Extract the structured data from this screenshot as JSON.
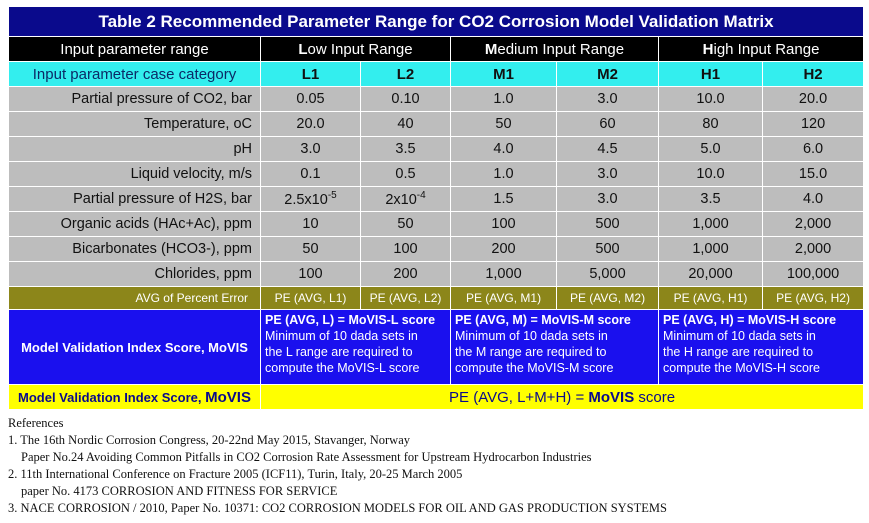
{
  "title": "Table 2   Recommended Parameter Range for CO2 Corrosion Model Validation Matrix",
  "header": {
    "label": "Input parameter range",
    "groups": [
      {
        "initial": "L",
        "rest": "ow Input Range"
      },
      {
        "initial": "M",
        "rest": "edium Input Range"
      },
      {
        "initial": "H",
        "rest": "igh Input Range"
      }
    ]
  },
  "category_row": {
    "label": "Input parameter case category",
    "cases": [
      "L1",
      "L2",
      "M1",
      "M2",
      "H1",
      "H2"
    ]
  },
  "rows": [
    {
      "label": "Partial pressure of CO2, bar",
      "values": [
        "0.05",
        "0.10",
        "1.0",
        "3.0",
        "10.0",
        "20.0"
      ]
    },
    {
      "label": "Temperature, oC",
      "values": [
        "20.0",
        "40",
        "50",
        "60",
        "80",
        "120"
      ]
    },
    {
      "label": "pH",
      "values": [
        "3.0",
        "3.5",
        "4.0",
        "4.5",
        "5.0",
        "6.0"
      ]
    },
    {
      "label": "Liquid velocity, m/s",
      "values": [
        "0.1",
        "0.5",
        "1.0",
        "3.0",
        "10.0",
        "15.0"
      ]
    },
    {
      "label": "Organic acids (HAc+Ac), ppm",
      "values": [
        "10",
        "50",
        "100",
        "500",
        "1,000",
        "2,000"
      ]
    },
    {
      "label": "Bicarbonates (HCO3-), ppm",
      "values": [
        "50",
        "100",
        "200",
        "500",
        "1,000",
        "2,000"
      ]
    },
    {
      "label": "Chlorides, ppm",
      "values": [
        "100",
        "200",
        "1,000",
        "5,000",
        "20,000",
        "100,000"
      ]
    }
  ],
  "h2s_row": {
    "label": "Partial pressure of H2S, bar",
    "l1_base": "2.5x10",
    "l1_exp": "-5",
    "l2_base": "2x10",
    "l2_exp": "-4",
    "others": [
      "1.5",
      "3.0",
      "3.5",
      "4.0"
    ]
  },
  "avg_row": {
    "label": "AVG of Percent Error",
    "values": [
      "PE (AVG, L1)",
      "PE (AVG, L2)",
      "PE (AVG, M1)",
      "PE (AVG, M2)",
      "PE (AVG, H1)",
      "PE (AVG, H2)"
    ]
  },
  "movis_row": {
    "label": "Model Validation Index Score, MoVIS",
    "blocks": [
      {
        "head": "PE (AVG, L) = MoVIS-L score",
        "line1": "Minimum of 10 dada sets in",
        "line2": "the L range are required to",
        "line3": "compute the MoVIS-L score"
      },
      {
        "head": "PE (AVG, M) = MoVIS-M score",
        "line1": "Minimum of 10 dada sets in",
        "line2": "the M range are required to",
        "line3": "compute the MoVIS-M score"
      },
      {
        "head": "PE (AVG, H) = MoVIS-H score",
        "line1": "Minimum of 10 dada sets in",
        "line2": "the H range are required to",
        "line3": "compute the MoVIS-H score"
      }
    ]
  },
  "final_row": {
    "label_prefix": "Model Validation Index Score, ",
    "label_bold": "MoVIS",
    "formula": "PE (AVG, L+M+H) = ",
    "formula_bold": "MoVIS",
    "formula_suffix": " score"
  },
  "references": {
    "heading": "References",
    "items": [
      "1.  The 16th Nordic Corrosion Congress, 20-22nd May 2015, Stavanger, Norway",
      "Paper No.24 Avoiding Common Pitfalls in CO2 Corrosion Rate Assessment for Upstream Hydrocarbon Industries",
      "2.  11th International Conference on Fracture 2005 (ICF11), Turin, Italy, 20-25 March 2005",
      "paper No. 4173  CORROSION AND FITNESS FOR SERVICE",
      "3. NACE CORROSION / 2010, Paper No. 10371: CO2 CORROSION MODELS FOR OIL AND GAS PRODUCTION SYSTEMS"
    ]
  },
  "colors": {
    "title_bg": "#0a0a8c",
    "header_bg": "#000000",
    "category_bg": "#33eeee",
    "data_bg": "#bdbdbd",
    "avg_bg": "#8c861a",
    "movis_bg": "#1a10ee",
    "final_bg": "#ffff00"
  }
}
